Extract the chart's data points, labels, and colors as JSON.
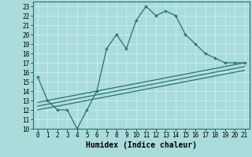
{
  "main_x": [
    0,
    1,
    2,
    3,
    4,
    5,
    6,
    7,
    8,
    9,
    10,
    11,
    12,
    13,
    14,
    15,
    16,
    17,
    18,
    19,
    20,
    21
  ],
  "main_y": [
    15.5,
    13,
    12,
    12,
    10,
    12,
    14,
    18.5,
    20,
    18.5,
    21.5,
    23,
    22,
    22.5,
    22,
    20,
    19,
    18,
    17.5,
    17,
    17,
    17
  ],
  "trend1_x": [
    0,
    21
  ],
  "trend1_y": [
    12.0,
    16.2
  ],
  "trend2_x": [
    0,
    21
  ],
  "trend2_y": [
    12.4,
    16.6
  ],
  "trend3_x": [
    0,
    21
  ],
  "trend3_y": [
    12.8,
    17.0
  ],
  "line_color": "#2d7070",
  "bg_color": "#aadcdc",
  "grid_color": "#c8ecec",
  "xlabel": "Humidex (Indice chaleur)",
  "xlim": [
    -0.5,
    21.5
  ],
  "ylim": [
    10,
    23.5
  ],
  "xticks": [
    0,
    1,
    2,
    3,
    4,
    5,
    6,
    7,
    8,
    9,
    10,
    11,
    12,
    13,
    14,
    15,
    16,
    17,
    18,
    19,
    20,
    21
  ],
  "yticks": [
    10,
    11,
    12,
    13,
    14,
    15,
    16,
    17,
    18,
    19,
    20,
    21,
    22,
    23
  ],
  "tick_fontsize": 5.5,
  "xlabel_fontsize": 7.0
}
